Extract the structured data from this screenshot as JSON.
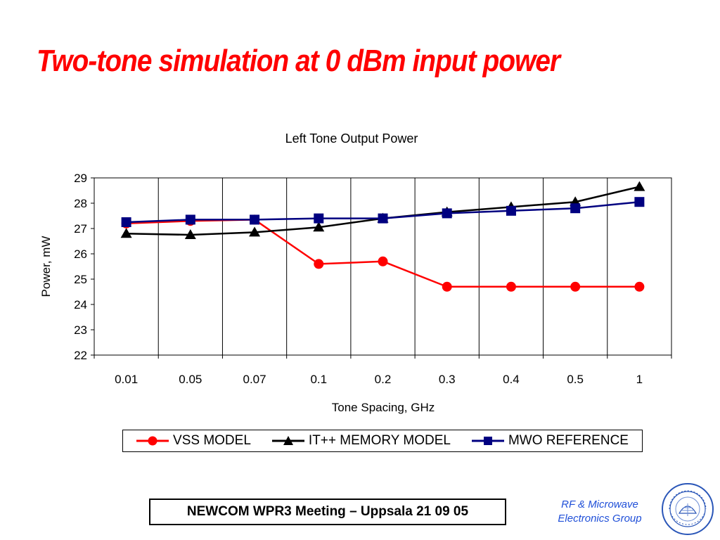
{
  "slide": {
    "title": "Two-tone simulation at 0 dBm input power",
    "footer": "NEWCOM WPR3 Meeting – Uppsala 21 09 05",
    "group_line1": "RF & Microwave",
    "group_line2": "Electronics Group",
    "logo_icon": "politecnico-di-torino-seal-icon",
    "logo_text": "POLITECNICO DI TORINO 1859 1906"
  },
  "chart_data": {
    "type": "line",
    "title": "Left Tone Output Power",
    "xlabel": "Tone Spacing, GHz",
    "ylabel": "Power, mW",
    "categories": [
      "0.01",
      "0.05",
      "0.07",
      "0.1",
      "0.2",
      "0.3",
      "0.4",
      "0.5",
      "1"
    ],
    "ylim": [
      22,
      29
    ],
    "yticks": [
      "22",
      "23",
      "24",
      "25",
      "26",
      "27",
      "28",
      "29"
    ],
    "grid": "vertical",
    "legend_placement": "bottom",
    "series": [
      {
        "name": "VSS MODEL",
        "color": "#ff0000",
        "marker": "circle",
        "values": [
          27.2,
          27.3,
          27.35,
          25.6,
          25.7,
          24.7,
          24.7,
          24.7,
          24.7
        ]
      },
      {
        "name": "IT++ MEMORY MODEL",
        "color": "#000000",
        "marker": "triangle",
        "values": [
          26.8,
          26.75,
          26.85,
          27.05,
          27.4,
          27.65,
          27.85,
          28.05,
          28.65
        ]
      },
      {
        "name": "MWO REFERENCE",
        "color": "#000080",
        "marker": "square",
        "values": [
          27.25,
          27.35,
          27.35,
          27.4,
          27.4,
          27.6,
          27.7,
          27.8,
          28.05
        ]
      }
    ]
  }
}
